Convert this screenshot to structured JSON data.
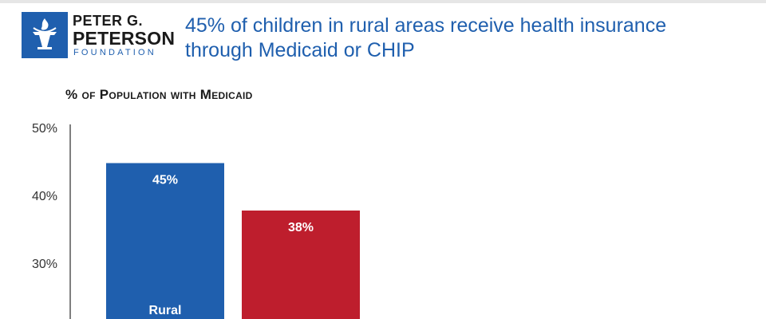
{
  "brand": {
    "name_line1": "PETER G.",
    "name_line2": "PETERSON",
    "name_line3": "FOUNDATION",
    "icon": "torch-icon",
    "color": "#1f5fae"
  },
  "headline": {
    "line1": "45% of children in rural areas receive health insurance",
    "line2": "through Medicaid or CHIP",
    "color": "#1f5fae"
  },
  "chart_data": {
    "type": "bar",
    "ylabel": "% of Population with Medicaid",
    "categories": [
      "Rural",
      ""
    ],
    "values": [
      45,
      38
    ],
    "value_labels": [
      "45%",
      "38%"
    ],
    "colors": [
      "#1f5fae",
      "#be1e2d"
    ],
    "yticks": [
      {
        "value": 50,
        "label": "50%"
      },
      {
        "value": 40,
        "label": "40%"
      },
      {
        "value": 30,
        "label": "30%"
      }
    ],
    "ylim_visible": [
      27,
      50
    ],
    "grid": false
  }
}
